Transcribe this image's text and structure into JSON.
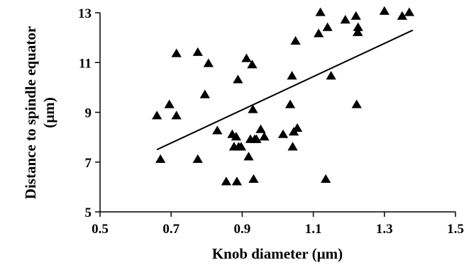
{
  "chart_data": {
    "type": "scatter",
    "title": "",
    "xlabel": "Knob diameter (µm)",
    "ylabel_line1": "Distance to spindle equator",
    "ylabel_line2": "(µm)",
    "xlim": [
      0.5,
      1.5
    ],
    "ylim": [
      5,
      13
    ],
    "xticks": [
      0.5,
      0.7,
      0.9,
      1.1,
      1.3,
      1.5
    ],
    "yticks": [
      5,
      7,
      9,
      11,
      13
    ],
    "xtick_labels": [
      "0.5",
      "0.7",
      "0.9",
      "1.1",
      "1.3",
      "1.5"
    ],
    "ytick_labels": [
      "5",
      "7",
      "9",
      "11",
      "13"
    ],
    "grid": false,
    "marker": "triangle",
    "series": [
      {
        "x": [
          0.66,
          0.67,
          0.695,
          0.715,
          0.715,
          0.775,
          0.775,
          0.795,
          0.805,
          0.83,
          0.855,
          0.872,
          0.877,
          0.883,
          0.885,
          0.888,
          0.89,
          0.897,
          0.912,
          0.918,
          0.923,
          0.928,
          0.93,
          0.932,
          0.935,
          0.94,
          0.952,
          0.962,
          1.015,
          1.035,
          1.04,
          1.042,
          1.045,
          1.05,
          1.055,
          1.115,
          1.12,
          1.135,
          1.14,
          1.15,
          1.19,
          1.22,
          1.222,
          1.225,
          1.225,
          1.226,
          1.3,
          1.35,
          1.37
        ],
        "y": [
          8.85,
          7.1,
          9.3,
          8.85,
          11.35,
          11.4,
          7.1,
          9.7,
          10.95,
          8.25,
          6.2,
          8.1,
          7.6,
          8.0,
          6.2,
          10.3,
          7.6,
          7.6,
          11.15,
          7.2,
          7.9,
          10.9,
          9.1,
          6.3,
          7.9,
          7.9,
          8.3,
          8.0,
          8.1,
          9.3,
          10.45,
          7.6,
          8.2,
          11.85,
          8.35,
          12.15,
          13.0,
          6.3,
          12.4,
          10.45,
          12.7,
          12.85,
          9.3,
          12.2,
          12.2,
          12.4,
          13.05,
          12.85,
          13.0
        ]
      }
    ],
    "trendline": {
      "x": [
        0.66,
        1.38
      ],
      "y": [
        7.5,
        12.3
      ]
    }
  }
}
